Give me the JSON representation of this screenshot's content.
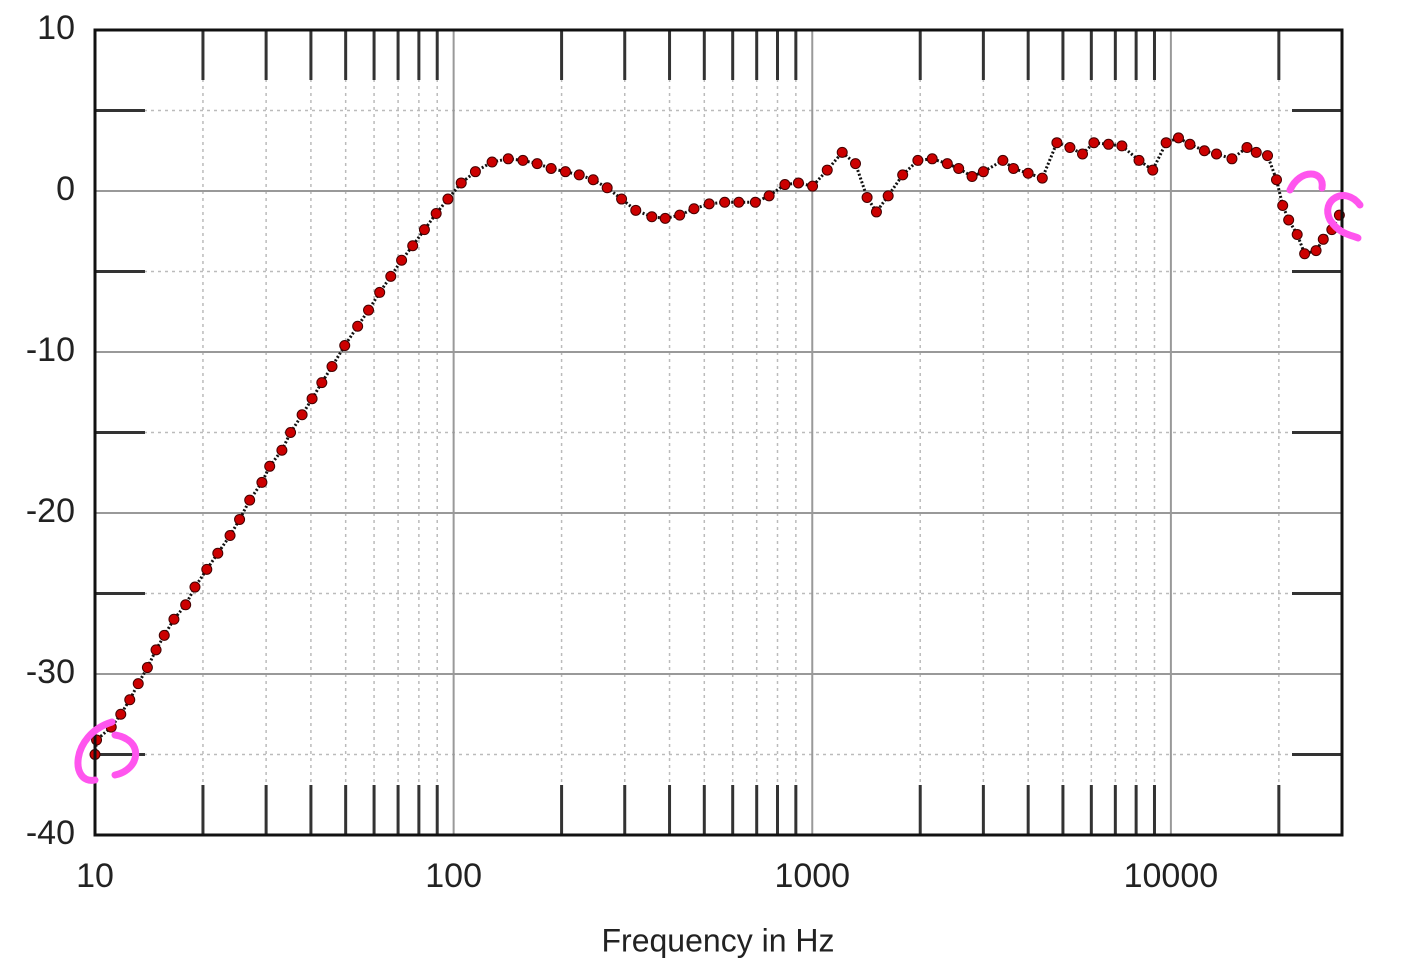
{
  "chart_data": {
    "type": "line",
    "x_label": "Frequency in Hz",
    "x_log": true,
    "grid": true,
    "color": "#cc0000",
    "xlim": [
      10,
      30000
    ],
    "xticks": [
      10,
      100,
      1000,
      10000
    ],
    "ylim": [
      -40,
      10
    ],
    "yticks": [
      -40,
      -30,
      -20,
      -10,
      0,
      10
    ],
    "x": [
      10,
      10.1,
      11.1,
      11.8,
      12.5,
      13.2,
      14,
      14.8,
      15.6,
      16.6,
      17.9,
      19,
      20.5,
      22,
      23.8,
      25.3,
      27,
      29.2,
      30.7,
      33.2,
      35.1,
      37.8,
      40.3,
      42.9,
      45.8,
      49.7,
      54,
      57.9,
      62.2,
      66.8,
      71.6,
      76.9,
      82.9,
      89.4,
      96.4,
      105,
      115,
      128,
      142,
      156,
      171,
      187,
      205,
      224,
      245,
      268,
      294,
      322,
      357,
      389,
      427,
      468,
      516,
      570,
      624,
      694,
      758,
      839,
      915,
      1002,
      1101,
      1212,
      1320,
      1422,
      1510,
      1628,
      1787,
      1970,
      2160,
      2380,
      2560,
      2790,
      3000,
      3400,
      3640,
      4000,
      4380,
      4810,
      5230,
      5670,
      6100,
      6700,
      7300,
      8150,
      8900,
      9700,
      10500,
      11300,
      12400,
      13400,
      14800,
      16300,
      17300,
      18600,
      19700,
      20500,
      21300,
      22500,
      23600,
      25400,
      26600,
      28100,
      29500
    ],
    "values": [
      -35.0,
      -34.1,
      -33.3,
      -32.5,
      -31.6,
      -30.6,
      -29.6,
      -28.5,
      -27.6,
      -26.6,
      -25.7,
      -24.6,
      -23.5,
      -22.5,
      -21.4,
      -20.4,
      -19.2,
      -18.1,
      -17.1,
      -16.1,
      -15.0,
      -13.9,
      -12.9,
      -11.9,
      -10.9,
      -9.6,
      -8.4,
      -7.4,
      -6.3,
      -5.3,
      -4.3,
      -3.4,
      -2.4,
      -1.4,
      -0.5,
      0.5,
      1.2,
      1.8,
      2.0,
      1.9,
      1.7,
      1.4,
      1.2,
      1.0,
      0.7,
      0.2,
      -0.5,
      -1.2,
      -1.6,
      -1.7,
      -1.5,
      -1.1,
      -0.8,
      -0.7,
      -0.7,
      -0.7,
      -0.3,
      0.4,
      0.5,
      0.3,
      1.3,
      2.4,
      1.7,
      -0.4,
      -1.3,
      -0.3,
      1.0,
      1.9,
      2.0,
      1.7,
      1.4,
      0.9,
      1.2,
      1.9,
      1.4,
      1.1,
      0.8,
      3.0,
      2.7,
      2.3,
      3.0,
      2.9,
      2.8,
      1.9,
      1.3,
      3.0,
      3.3,
      2.9,
      2.5,
      2.3,
      2.0,
      2.7,
      2.4,
      2.2,
      0.7,
      -0.9,
      -1.8,
      -2.7,
      -3.9,
      -3.7,
      -3.0,
      -2.4,
      -1.5
    ]
  }
}
